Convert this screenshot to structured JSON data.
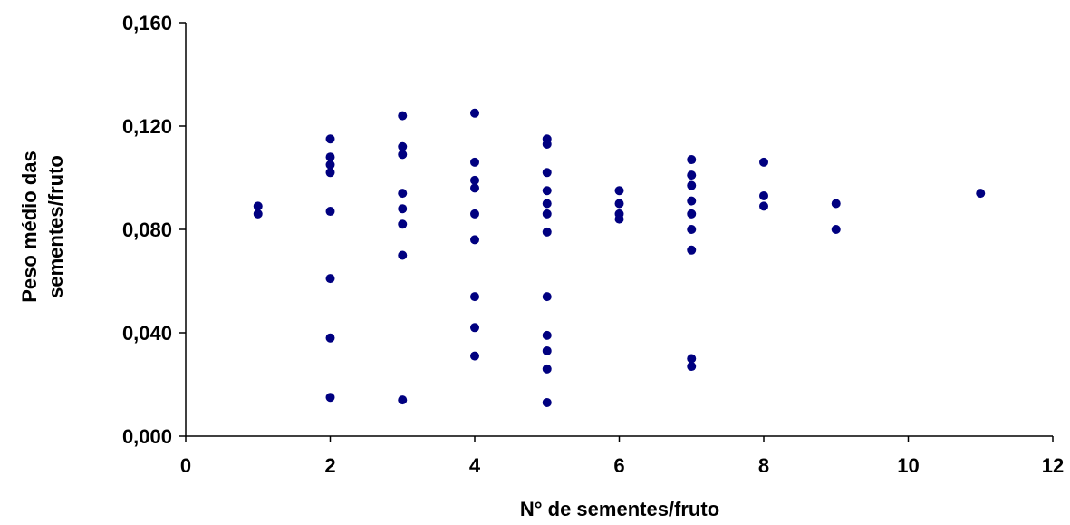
{
  "chart_data": {
    "type": "scatter",
    "title": "",
    "xlabel": "N° de sementes/fruto",
    "ylabel_lines": [
      "Peso médio das",
      "sementes/fruto"
    ],
    "xlim": [
      0,
      12
    ],
    "ylim": [
      0,
      0.16
    ],
    "x_ticks": [
      0,
      2,
      4,
      6,
      8,
      10,
      12
    ],
    "x_tick_labels": [
      "0",
      "2",
      "4",
      "6",
      "8",
      "10",
      "12"
    ],
    "y_ticks": [
      0,
      0.04,
      0.08,
      0.12,
      0.16
    ],
    "y_tick_labels": [
      "0,000",
      "0,040",
      "0,080",
      "0,120",
      "0,160"
    ],
    "grid": false,
    "marker_color": "#000080",
    "points": [
      {
        "x": 1,
        "y": 0.089
      },
      {
        "x": 1,
        "y": 0.086
      },
      {
        "x": 2,
        "y": 0.115
      },
      {
        "x": 2,
        "y": 0.108
      },
      {
        "x": 2,
        "y": 0.105
      },
      {
        "x": 2,
        "y": 0.102
      },
      {
        "x": 2,
        "y": 0.087
      },
      {
        "x": 2,
        "y": 0.061
      },
      {
        "x": 2,
        "y": 0.038
      },
      {
        "x": 2,
        "y": 0.015
      },
      {
        "x": 3,
        "y": 0.124
      },
      {
        "x": 3,
        "y": 0.112
      },
      {
        "x": 3,
        "y": 0.109
      },
      {
        "x": 3,
        "y": 0.094
      },
      {
        "x": 3,
        "y": 0.088
      },
      {
        "x": 3,
        "y": 0.082
      },
      {
        "x": 3,
        "y": 0.07
      },
      {
        "x": 3,
        "y": 0.014
      },
      {
        "x": 4,
        "y": 0.125
      },
      {
        "x": 4,
        "y": 0.106
      },
      {
        "x": 4,
        "y": 0.099
      },
      {
        "x": 4,
        "y": 0.096
      },
      {
        "x": 4,
        "y": 0.086
      },
      {
        "x": 4,
        "y": 0.076
      },
      {
        "x": 4,
        "y": 0.054
      },
      {
        "x": 4,
        "y": 0.042
      },
      {
        "x": 4,
        "y": 0.031
      },
      {
        "x": 5,
        "y": 0.115
      },
      {
        "x": 5,
        "y": 0.113
      },
      {
        "x": 5,
        "y": 0.102
      },
      {
        "x": 5,
        "y": 0.095
      },
      {
        "x": 5,
        "y": 0.09
      },
      {
        "x": 5,
        "y": 0.086
      },
      {
        "x": 5,
        "y": 0.079
      },
      {
        "x": 5,
        "y": 0.054
      },
      {
        "x": 5,
        "y": 0.039
      },
      {
        "x": 5,
        "y": 0.033
      },
      {
        "x": 5,
        "y": 0.026
      },
      {
        "x": 5,
        "y": 0.013
      },
      {
        "x": 6,
        "y": 0.095
      },
      {
        "x": 6,
        "y": 0.09
      },
      {
        "x": 6,
        "y": 0.086
      },
      {
        "x": 6,
        "y": 0.084
      },
      {
        "x": 7,
        "y": 0.107
      },
      {
        "x": 7,
        "y": 0.101
      },
      {
        "x": 7,
        "y": 0.097
      },
      {
        "x": 7,
        "y": 0.091
      },
      {
        "x": 7,
        "y": 0.086
      },
      {
        "x": 7,
        "y": 0.08
      },
      {
        "x": 7,
        "y": 0.072
      },
      {
        "x": 7,
        "y": 0.03
      },
      {
        "x": 7,
        "y": 0.027
      },
      {
        "x": 8,
        "y": 0.106
      },
      {
        "x": 8,
        "y": 0.093
      },
      {
        "x": 8,
        "y": 0.089
      },
      {
        "x": 9,
        "y": 0.09
      },
      {
        "x": 9,
        "y": 0.08
      },
      {
        "x": 11,
        "y": 0.094
      }
    ]
  }
}
